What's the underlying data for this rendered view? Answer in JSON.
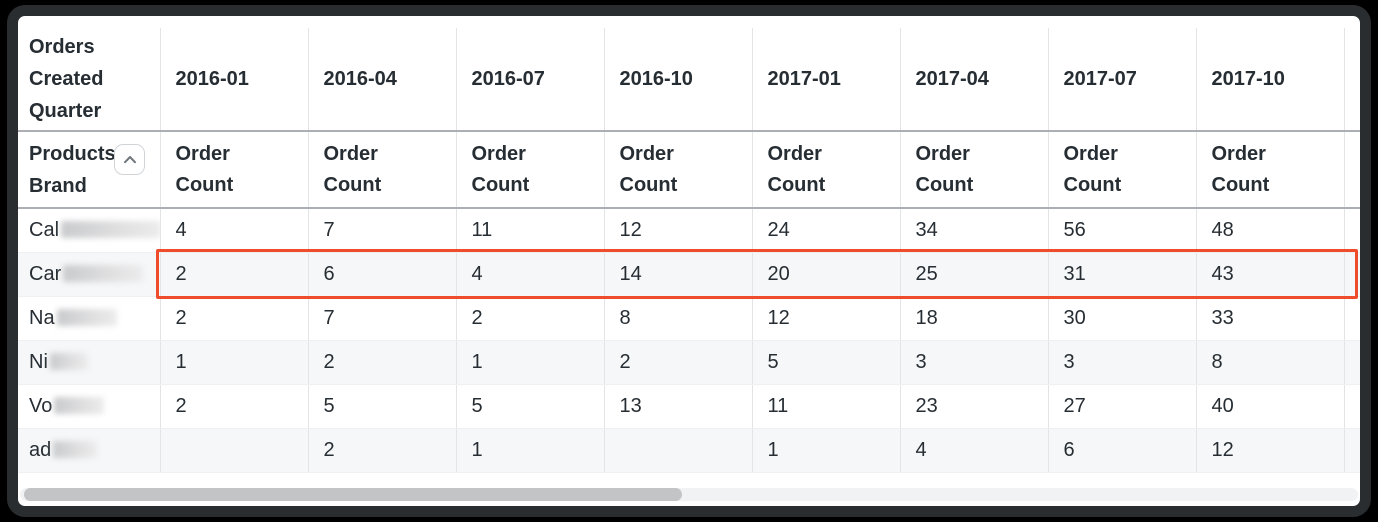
{
  "window": {
    "background_color": "#000000",
    "frame_color": "#2a2d2f"
  },
  "table": {
    "row_dimension_label": "Orders Created Quarter",
    "column_dimension_label": "Products Brand",
    "measure_label": "Order Count",
    "sort_icon": "chevron-up-icon",
    "quarter_columns": [
      "2016-01",
      "2016-04",
      "2016-07",
      "2016-10",
      "2017-01",
      "2017-04",
      "2017-07",
      "2017-10"
    ],
    "rows": [
      {
        "label_prefix": "Cal",
        "label_redacted": true,
        "blur_width": 100,
        "highlighted": false,
        "values": [
          "4",
          "7",
          "11",
          "12",
          "24",
          "34",
          "56",
          "48"
        ]
      },
      {
        "label_prefix": "Car",
        "label_redacted": true,
        "blur_width": 80,
        "highlighted": true,
        "values": [
          "2",
          "6",
          "4",
          "14",
          "20",
          "25",
          "31",
          "43"
        ]
      },
      {
        "label_prefix": "Na",
        "label_redacted": true,
        "blur_width": 60,
        "highlighted": false,
        "values": [
          "2",
          "7",
          "2",
          "8",
          "12",
          "18",
          "30",
          "33"
        ]
      },
      {
        "label_prefix": "Ni",
        "label_redacted": true,
        "blur_width": 38,
        "highlighted": false,
        "values": [
          "1",
          "2",
          "1",
          "2",
          "5",
          "3",
          "3",
          "8"
        ]
      },
      {
        "label_prefix": "Vo",
        "label_redacted": true,
        "blur_width": 50,
        "highlighted": false,
        "values": [
          "2",
          "5",
          "5",
          "13",
          "11",
          "23",
          "27",
          "40"
        ]
      },
      {
        "label_prefix": "ad",
        "label_redacted": true,
        "blur_width": 44,
        "highlighted": false,
        "values": [
          "",
          "2",
          "1",
          "",
          "1",
          "4",
          "6",
          "12"
        ]
      }
    ],
    "highlight_color": "#ee4c2a",
    "stripe_color": "#f6f7f8",
    "text_color": "#262d33"
  },
  "scrollbar": {
    "orientation": "horizontal",
    "thumb_color": "#c2c4c6",
    "track_color": "#f1f2f3"
  }
}
